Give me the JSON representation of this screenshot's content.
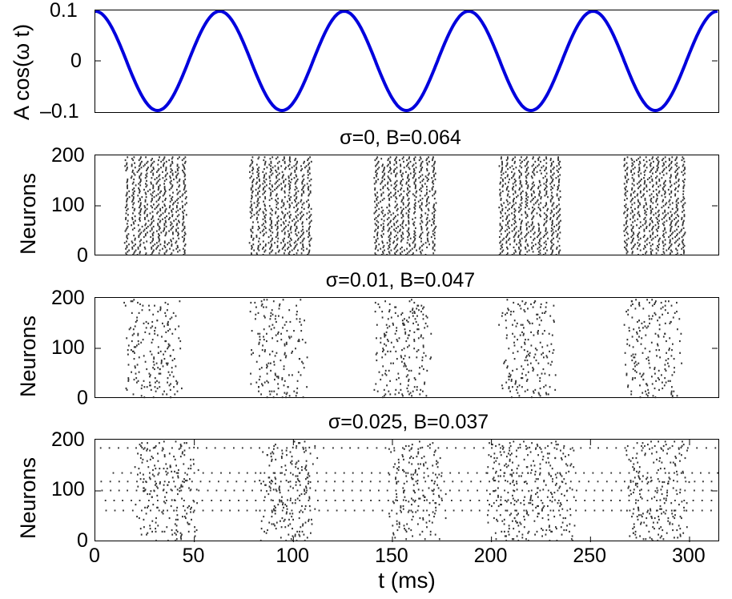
{
  "chart_data": [
    {
      "type": "line",
      "title": "",
      "xlabel": "",
      "ylabel": "A cos(ω t)",
      "xlim": [
        0,
        314.16
      ],
      "ylim": [
        -0.1,
        0.1
      ],
      "yticks": [
        "0.1",
        "0",
        "–0.1"
      ],
      "series": [
        {
          "name": "A cos(ω t)",
          "color": "#0000dd",
          "amplitude": 0.1,
          "period_ms": 62.83,
          "peaks_t": [
            0,
            62.8,
            125.7,
            188.5,
            251.3,
            314.2
          ],
          "troughs_t": [
            31.4,
            94.2,
            157.1,
            219.9,
            282.7
          ]
        }
      ]
    },
    {
      "type": "scatter",
      "title": "σ=0, B=0.064",
      "ylabel": "Neurons",
      "xlim": [
        0,
        314.16
      ],
      "ylim": [
        0,
        200
      ],
      "yticks": [
        "200",
        "100",
        "0"
      ],
      "bursts_ms": [
        [
          15,
          48
        ],
        [
          78,
          111
        ],
        [
          141,
          174
        ],
        [
          204,
          237
        ],
        [
          267,
          300
        ]
      ],
      "sigma": 0,
      "B": 0.064
    },
    {
      "type": "scatter",
      "title": "σ=0.01, B=0.047",
      "ylabel": "Neurons",
      "xlim": [
        0,
        314.16
      ],
      "ylim": [
        0,
        200
      ],
      "yticks": [
        "200",
        "100",
        "0"
      ],
      "bursts_ms": [
        [
          17,
          44
        ],
        [
          80,
          107
        ],
        [
          143,
          170
        ],
        [
          206,
          233
        ],
        [
          269,
          296
        ]
      ],
      "sigma": 0.01,
      "B": 0.047
    },
    {
      "type": "scatter",
      "title": "σ=0.025, B=0.037",
      "xlabel": "t (ms)",
      "ylabel": "Neurons",
      "xlim": [
        0,
        314.16
      ],
      "ylim": [
        0,
        200
      ],
      "xticks": [
        "0",
        "50",
        "100",
        "150",
        "200",
        "250",
        "300"
      ],
      "yticks": [
        "200",
        "100",
        "0"
      ],
      "bursts_ms": [
        [
          22,
          50
        ],
        [
          85,
          110
        ],
        [
          150,
          175
        ],
        [
          200,
          240
        ],
        [
          270,
          300
        ]
      ],
      "tonic_rows_neurons": [
        185,
        135,
        118,
        100,
        80,
        60
      ],
      "sigma": 0.025,
      "B": 0.037
    }
  ],
  "labels": {
    "p1_ylabel": "A cos(ω t)",
    "p1_yt_top": "0.1",
    "p1_yt_mid": "0",
    "p1_yt_bot": "–0.1",
    "p2_title": "σ=0, B=0.064",
    "p3_title": "σ=0.01, B=0.047",
    "p4_title": "σ=0.025, B=0.037",
    "neurons": "Neurons",
    "yt_200": "200",
    "yt_100": "100",
    "yt_0": "0",
    "xt": [
      "0",
      "50",
      "100",
      "150",
      "200",
      "250",
      "300"
    ],
    "xlabel": "t (ms)"
  },
  "colors": {
    "line": "#0000dd",
    "spike": "#333333",
    "axis": "#000000"
  }
}
